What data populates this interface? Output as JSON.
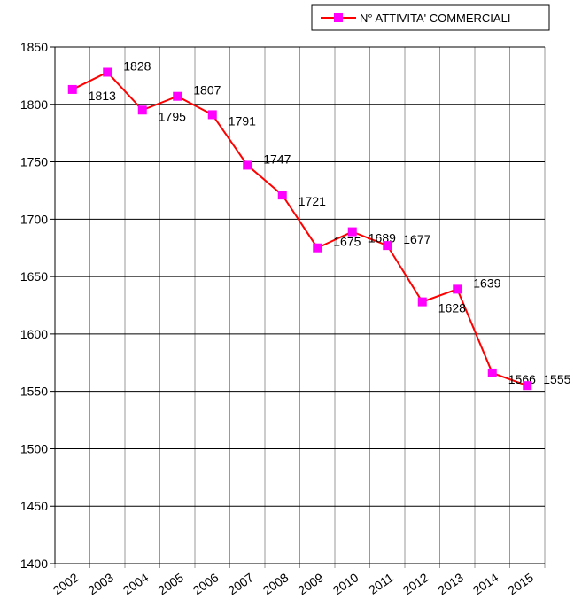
{
  "chart_data": {
    "type": "line",
    "categories": [
      "2002",
      "2003",
      "2004",
      "2005",
      "2006",
      "2007",
      "2008",
      "2009",
      "2010",
      "2011",
      "2012",
      "2013",
      "2014",
      "2015"
    ],
    "series": [
      {
        "name": "N° ATTIVITA' COMMERCIALI",
        "color": "#ff0000",
        "marker_color": "#ff00ff",
        "values": [
          1813,
          1828,
          1795,
          1807,
          1791,
          1747,
          1721,
          1675,
          1689,
          1677,
          1628,
          1639,
          1566,
          1555
        ]
      }
    ],
    "ylim": [
      1400,
      1850
    ],
    "yticks": [
      1400,
      1450,
      1500,
      1550,
      1600,
      1650,
      1700,
      1750,
      1800,
      1850
    ],
    "grid": true,
    "legend": "top-right"
  }
}
